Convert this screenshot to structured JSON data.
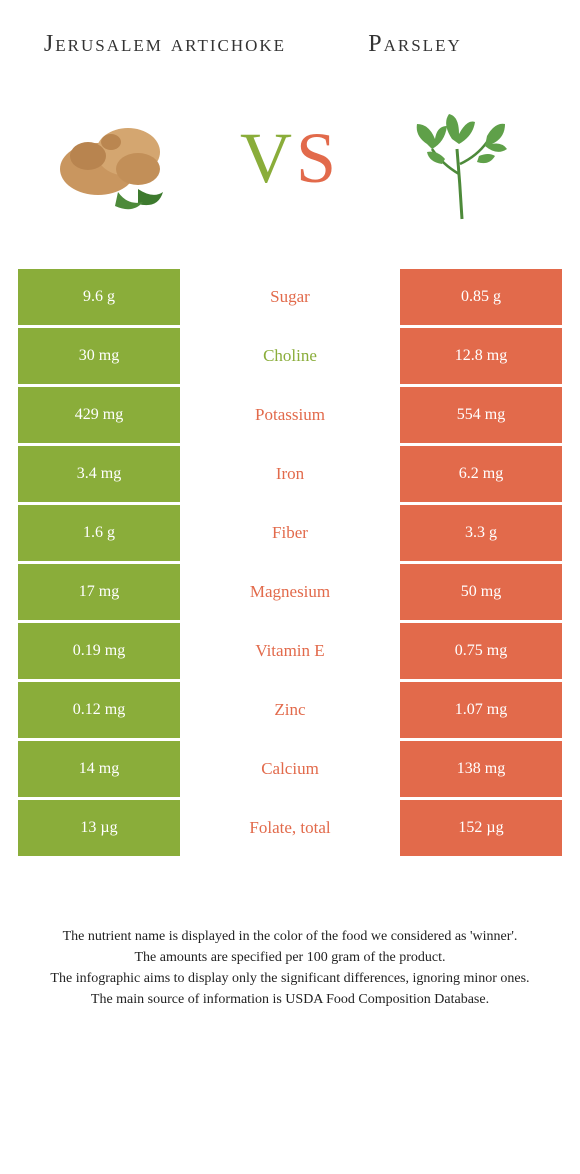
{
  "foods": {
    "left": {
      "name": "Jerusalem artichoke",
      "color": "#8aad3a"
    },
    "right": {
      "name": "Parsley",
      "color": "#e26a4b"
    }
  },
  "vs": {
    "v": "V",
    "s": "S"
  },
  "colors": {
    "green": "#8aad3a",
    "orange": "#e26a4b",
    "bg": "#ffffff",
    "text": "#333333"
  },
  "nutrients": [
    {
      "name": "Sugar",
      "left": "9.6 g",
      "right": "0.85 g",
      "winner": "right"
    },
    {
      "name": "Choline",
      "left": "30 mg",
      "right": "12.8 mg",
      "winner": "left"
    },
    {
      "name": "Potassium",
      "left": "429 mg",
      "right": "554 mg",
      "winner": "right"
    },
    {
      "name": "Iron",
      "left": "3.4 mg",
      "right": "6.2 mg",
      "winner": "right"
    },
    {
      "name": "Fiber",
      "left": "1.6 g",
      "right": "3.3 g",
      "winner": "right"
    },
    {
      "name": "Magnesium",
      "left": "17 mg",
      "right": "50 mg",
      "winner": "right"
    },
    {
      "name": "Vitamin E",
      "left": "0.19 mg",
      "right": "0.75 mg",
      "winner": "right"
    },
    {
      "name": "Zinc",
      "left": "0.12 mg",
      "right": "1.07 mg",
      "winner": "right"
    },
    {
      "name": "Calcium",
      "left": "14 mg",
      "right": "138 mg",
      "winner": "right"
    },
    {
      "name": "Folate, total",
      "left": "13 µg",
      "right": "152 µg",
      "winner": "right"
    }
  ],
  "footer": {
    "l1": "The nutrient name is displayed in the color of the food we considered as 'winner'.",
    "l2": "The amounts are specified per 100 gram of the product.",
    "l3": "The infographic aims to display only the significant differences, ignoring minor ones.",
    "l4": "The main source of information is USDA Food Composition Database."
  }
}
